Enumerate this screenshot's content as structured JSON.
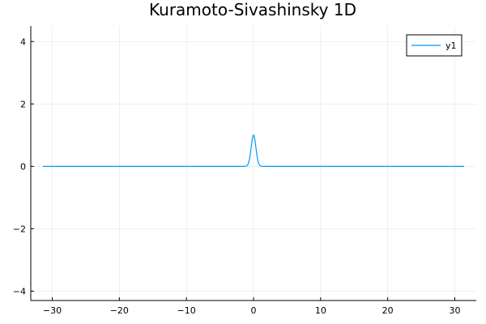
{
  "chart_data": {
    "type": "line",
    "title": "Kuramoto-Sivashinsky 1D",
    "xlabel": "",
    "ylabel": "",
    "xlim": [
      -33.2,
      33.2
    ],
    "ylim": [
      -4.3,
      4.5
    ],
    "x_ticks": [
      -30,
      -20,
      -10,
      0,
      10,
      20,
      30
    ],
    "x_tick_labels": [
      "−30",
      "−20",
      "−10",
      "0",
      "10",
      "20",
      "30"
    ],
    "y_ticks": [
      -4,
      -2,
      0,
      2,
      4
    ],
    "y_tick_labels": [
      "−4",
      "−2",
      "0",
      "2",
      "4"
    ],
    "grid": true,
    "legend": {
      "position": "top-right",
      "entries": [
        "y1"
      ]
    },
    "series": [
      {
        "name": "y1",
        "color": "#009af9",
        "x_range": [
          -31.4,
          31.4
        ],
        "shape": "gaussian",
        "center": 0.0,
        "amplitude": 1.0,
        "width": 0.5,
        "baseline": 0.0
      }
    ]
  }
}
